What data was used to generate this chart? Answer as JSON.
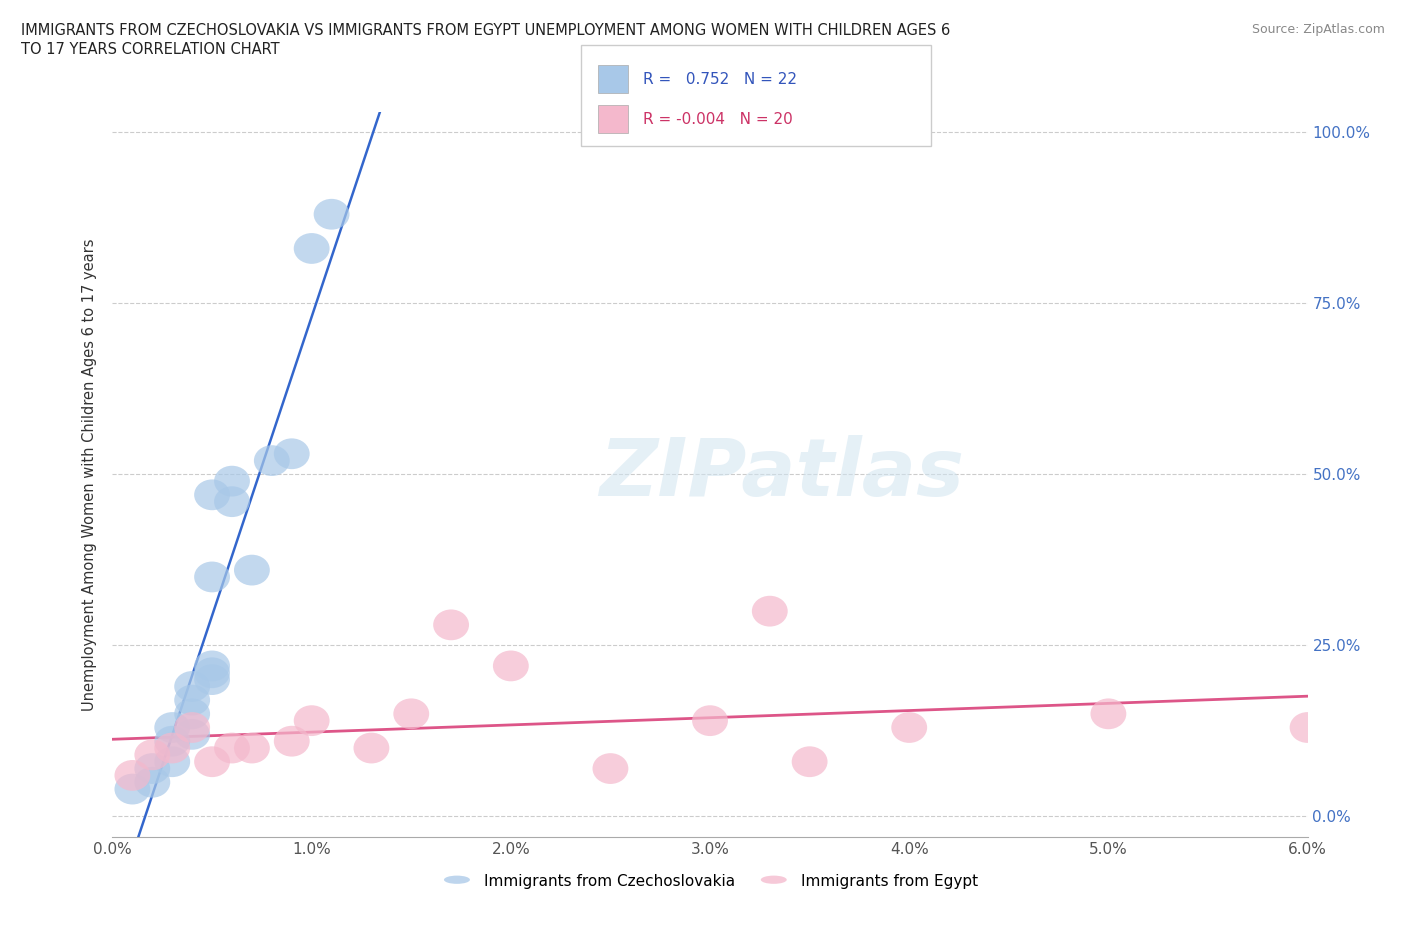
{
  "title_line1": "IMMIGRANTS FROM CZECHOSLOVAKIA VS IMMIGRANTS FROM EGYPT UNEMPLOYMENT AMONG WOMEN WITH CHILDREN AGES 6",
  "title_line2": "TO 17 YEARS CORRELATION CHART",
  "source": "Source: ZipAtlas.com",
  "ylabel_left": "Unemployment Among Women with Children Ages 6 to 17 years",
  "ylabel_right_labels": [
    "0.0%",
    "25.0%",
    "50.0%",
    "75.0%",
    "100.0%"
  ],
  "ylabel_right_values": [
    0.0,
    0.25,
    0.5,
    0.75,
    1.0
  ],
  "xlim": [
    0.0,
    0.06
  ],
  "ylim": [
    -0.05,
    1.05
  ],
  "ylim_data": [
    0.0,
    1.0
  ],
  "xtick_labels": [
    "0.0%",
    "1.0%",
    "2.0%",
    "3.0%",
    "4.0%",
    "5.0%",
    "6.0%"
  ],
  "xtick_values": [
    0.0,
    0.01,
    0.02,
    0.03,
    0.04,
    0.05,
    0.06
  ],
  "legend_labels": [
    "Immigrants from Czechoslovakia",
    "Immigrants from Egypt"
  ],
  "legend_r": [
    "0.752",
    "-0.004"
  ],
  "legend_n": [
    "22",
    "20"
  ],
  "blue_color": "#a8c8e8",
  "pink_color": "#f4b8cc",
  "blue_line_color": "#3366cc",
  "pink_line_color": "#dd5588",
  "watermark": "ZIPatlas",
  "background_color": "#ffffff",
  "grid_color": "#cccccc",
  "blue_scatter_x": [
    0.001,
    0.002,
    0.002,
    0.003,
    0.003,
    0.003,
    0.004,
    0.004,
    0.004,
    0.004,
    0.005,
    0.005,
    0.005,
    0.005,
    0.005,
    0.006,
    0.006,
    0.007,
    0.008,
    0.009,
    0.01,
    0.011
  ],
  "blue_scatter_y": [
    0.04,
    0.05,
    0.07,
    0.08,
    0.11,
    0.13,
    0.12,
    0.15,
    0.17,
    0.19,
    0.2,
    0.21,
    0.22,
    0.35,
    0.47,
    0.46,
    0.49,
    0.36,
    0.52,
    0.53,
    0.83,
    0.88
  ],
  "pink_scatter_x": [
    0.001,
    0.002,
    0.003,
    0.004,
    0.005,
    0.006,
    0.007,
    0.009,
    0.01,
    0.013,
    0.015,
    0.017,
    0.02,
    0.025,
    0.03,
    0.033,
    0.035,
    0.04,
    0.05,
    0.06
  ],
  "pink_scatter_y": [
    0.06,
    0.09,
    0.1,
    0.13,
    0.08,
    0.1,
    0.1,
    0.11,
    0.14,
    0.1,
    0.15,
    0.28,
    0.22,
    0.07,
    0.14,
    0.3,
    0.08,
    0.13,
    0.15,
    0.13
  ]
}
